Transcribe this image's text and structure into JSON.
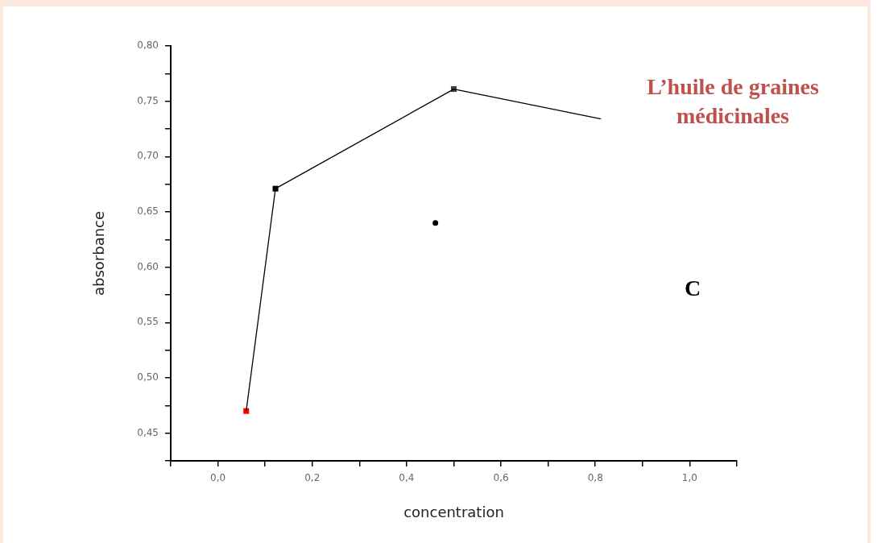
{
  "chart_data": {
    "type": "line",
    "xlabel": "concentration",
    "ylabel": "absorbance",
    "annotations": [
      "L’huile de graines médicinales",
      "C"
    ],
    "series": [
      {
        "x": [
          0.06,
          0.122,
          0.5,
          0.812
        ],
        "values": [
          0.47,
          0.671,
          0.761,
          0.734
        ],
        "color": "#000000",
        "marker": "none",
        "line_style": "solid"
      },
      {
        "type": "scatter",
        "x": [
          0.06,
          0.122,
          0.5
        ],
        "values": [
          0.47,
          0.671,
          0.761
        ],
        "colors": [
          "#ff0000",
          "#000000",
          "#404040"
        ],
        "marker": "square"
      },
      {
        "type": "scatter",
        "x": [
          0.461
        ],
        "values": [
          0.64
        ],
        "color": "#000000",
        "marker": "circle"
      }
    ],
    "xlim": [
      -0.1,
      1.1
    ],
    "xticks": [
      {
        "value": -0.1,
        "label": null
      },
      {
        "value": 0,
        "label": "0,0"
      },
      {
        "value": 0.1,
        "label": null
      },
      {
        "value": 0.2,
        "label": "0,2"
      },
      {
        "value": 0.3,
        "label": null
      },
      {
        "value": 0.4,
        "label": "0,4"
      },
      {
        "value": 0.5,
        "label": null
      },
      {
        "value": 0.6,
        "label": "0,6"
      },
      {
        "value": 0.7,
        "label": null
      },
      {
        "value": 0.8,
        "label": "0,8"
      },
      {
        "value": 0.9,
        "label": null
      },
      {
        "value": 1.0,
        "label": "1,0"
      },
      {
        "value": 1.1,
        "label": null
      }
    ],
    "ylim": [
      0.425,
      0.8
    ],
    "yticks": [
      {
        "value": 0.425,
        "label": null
      },
      {
        "value": 0.45,
        "label": "0,45"
      },
      {
        "value": 0.475,
        "label": null
      },
      {
        "value": 0.5,
        "label": "0,50"
      },
      {
        "value": 0.525,
        "label": null
      },
      {
        "value": 0.55,
        "label": "0,55"
      },
      {
        "value": 0.575,
        "label": null
      },
      {
        "value": 0.6,
        "label": "0,60"
      },
      {
        "value": 0.625,
        "label": null
      },
      {
        "value": 0.65,
        "label": "0,65"
      },
      {
        "value": 0.675,
        "label": null
      },
      {
        "value": 0.7,
        "label": "0,70"
      },
      {
        "value": 0.725,
        "label": null
      },
      {
        "value": 0.75,
        "label": "0,75"
      },
      {
        "value": 0.775,
        "label": null
      },
      {
        "value": 0.8,
        "label": "0,80"
      }
    ],
    "grid": false,
    "legend": false
  }
}
